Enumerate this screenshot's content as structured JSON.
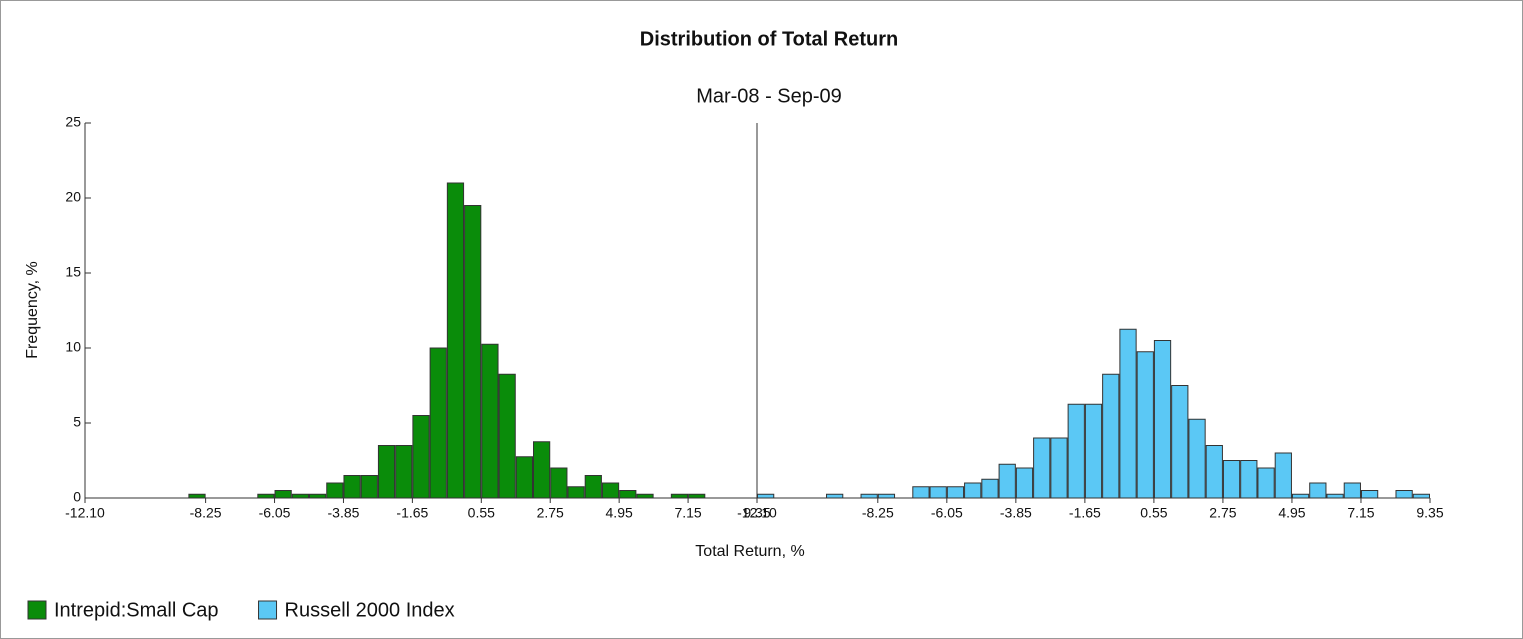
{
  "chart_data": [
    {
      "type": "histogram",
      "title": "Distribution of Total Return",
      "subtitle": "Mar-08 - Sep-09",
      "x_label": "Total Return, %",
      "y_label": "Frequency, %",
      "legend": "bottom-left",
      "bins": [
        -12.1,
        -11.55,
        -11,
        -10.45,
        -9.9,
        -9.35,
        -8.8,
        -8.25,
        -7.7,
        -7.15,
        -6.6,
        -6.05,
        -5.5,
        -4.95,
        -4.4,
        -3.85,
        -3.3,
        -2.75,
        -2.2,
        -1.65,
        -1.1,
        -0.55,
        0,
        0.55,
        1.1,
        1.65,
        2.2,
        2.75,
        3.3,
        3.85,
        4.4,
        4.95,
        5.5,
        6.05,
        6.6,
        7.15,
        7.7,
        8.25,
        8.8,
        9.35
      ],
      "xlim": [
        -12.1,
        9.35
      ],
      "xticks": [
        {
          "value": -12.1,
          "label": "-12.10"
        },
        -8.25,
        -6.05,
        -3.85,
        -1.65,
        0.55,
        2.75,
        4.95,
        7.15,
        9.35
      ],
      "ylim": [
        0,
        25
      ],
      "yticks": [
        0,
        5,
        10,
        15,
        20,
        25
      ],
      "series": [
        {
          "name": "Intrepid:Small Cap",
          "color": "#0a8c0a",
          "values": [
            0,
            0,
            0,
            0,
            0,
            0,
            0.25,
            0,
            0,
            0,
            0.25,
            0.5,
            0.25,
            0.25,
            1,
            1.5,
            1.5,
            3.5,
            3.5,
            5.5,
            10,
            21,
            19.5,
            10.25,
            8.25,
            2.75,
            3.75,
            2,
            0.75,
            1.5,
            1,
            0.5,
            0.25,
            0,
            0.25,
            0.25,
            0,
            0,
            0
          ]
        }
      ]
    },
    {
      "type": "histogram",
      "bins": [
        -12.1,
        -11.55,
        -11,
        -10.45,
        -9.9,
        -9.35,
        -8.8,
        -8.25,
        -7.7,
        -7.15,
        -6.6,
        -6.05,
        -5.5,
        -4.95,
        -4.4,
        -3.85,
        -3.3,
        -2.75,
        -2.2,
        -1.65,
        -1.1,
        -0.55,
        0,
        0.55,
        1.1,
        1.65,
        2.2,
        2.75,
        3.3,
        3.85,
        4.4,
        4.95,
        5.5,
        6.05,
        6.6,
        7.15,
        7.7,
        8.25,
        8.8,
        9.35
      ],
      "xlim": [
        -12.1,
        9.35
      ],
      "xticks": [
        {
          "value": -12.1,
          "label": "-12.10"
        },
        -8.25,
        -6.05,
        -3.85,
        -1.65,
        0.55,
        2.75,
        4.95,
        7.15,
        9.35
      ],
      "ylim": [
        0,
        25
      ],
      "series": [
        {
          "name": "Russell 2000 Index",
          "color": "#5bc8f5",
          "values": [
            0.25,
            0,
            0,
            0,
            0.25,
            0,
            0.25,
            0.25,
            0,
            0.75,
            0.75,
            0.75,
            1,
            1.25,
            2.25,
            2,
            4,
            4,
            6.25,
            6.25,
            8.25,
            11.25,
            9.75,
            10.5,
            7.5,
            5.25,
            3.5,
            2.5,
            2.5,
            2,
            3,
            0.25,
            1,
            0.25,
            1,
            0.5,
            0,
            0.5,
            0.25
          ]
        }
      ]
    }
  ]
}
